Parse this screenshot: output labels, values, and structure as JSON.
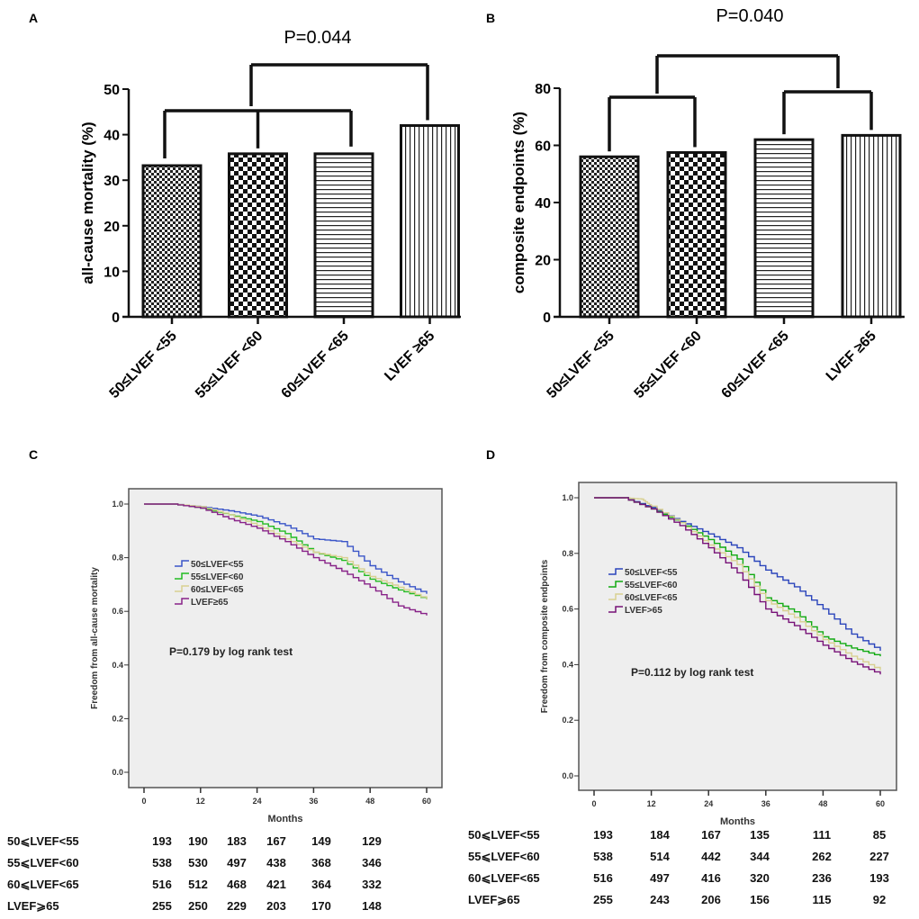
{
  "chart_data": [
    {
      "panel": "A",
      "type": "bar",
      "ylabel": "all-cause mortality (%)",
      "ylim": [
        0,
        50
      ],
      "yticks": [
        0,
        10,
        20,
        30,
        40,
        50
      ],
      "categories": [
        "50≤LVEF <55",
        "55≤LVEF <60",
        "60≤LVEF <65",
        "LVEF ≥65"
      ],
      "values": [
        33.2,
        35.8,
        35.8,
        42.0
      ],
      "patterns": [
        "fine-checker",
        "checker",
        "horizontal-lines",
        "vertical-lines"
      ],
      "annotation": "P=0.044"
    },
    {
      "panel": "B",
      "type": "bar",
      "ylabel": "composite endpoints (%)",
      "ylim": [
        0,
        80
      ],
      "yticks": [
        0,
        20,
        40,
        60,
        80
      ],
      "categories": [
        "50≤LVEF <55",
        "55≤LVEF <60",
        "60≤LVEF <65",
        "LVEF ≥65"
      ],
      "values": [
        56.0,
        57.5,
        62.0,
        63.5
      ],
      "patterns": [
        "fine-checker",
        "checker",
        "horizontal-lines",
        "vertical-lines"
      ],
      "annotation": "P=0.040"
    },
    {
      "panel": "C",
      "type": "line",
      "xlabel": "Months",
      "ylabel": "Freedom from all-cause mortality",
      "xlim": [
        0,
        60
      ],
      "ylim": [
        0,
        1
      ],
      "xticks": [
        "0",
        "12",
        "24",
        "36",
        "48",
        "60"
      ],
      "yticks": [
        "0.0",
        "0.2",
        "0.4",
        "0.6",
        "0.8",
        "1.0"
      ],
      "annotation": "P=0.179 by log rank test",
      "legend_placement": "center-left",
      "background": "#eeeeee",
      "series": [
        {
          "name": "50≤LVEF<55",
          "color": "#3a55c8",
          "x": [
            0,
            6,
            12,
            18,
            24,
            30,
            36,
            42,
            48,
            54,
            60
          ],
          "y": [
            1,
            1,
            0.99,
            0.975,
            0.955,
            0.92,
            0.87,
            0.86,
            0.77,
            0.71,
            0.665
          ]
        },
        {
          "name": "55≤LVEF<60",
          "color": "#22bb22",
          "x": [
            0,
            6,
            12,
            18,
            24,
            30,
            36,
            42,
            48,
            54,
            60
          ],
          "y": [
            1,
            1,
            0.985,
            0.96,
            0.935,
            0.89,
            0.82,
            0.79,
            0.72,
            0.68,
            0.645
          ]
        },
        {
          "name": "60≤LVEF<65",
          "color": "#d8d090",
          "x": [
            0,
            6,
            12,
            18,
            24,
            30,
            36,
            42,
            48,
            54,
            60
          ],
          "y": [
            1,
            1,
            0.99,
            0.96,
            0.92,
            0.87,
            0.82,
            0.8,
            0.73,
            0.69,
            0.645
          ]
        },
        {
          "name": "LVEF≥65",
          "color": "#882288",
          "x": [
            0,
            6,
            12,
            18,
            24,
            30,
            36,
            42,
            48,
            54,
            60
          ],
          "y": [
            1,
            1,
            0.985,
            0.945,
            0.91,
            0.86,
            0.8,
            0.75,
            0.69,
            0.62,
            0.585
          ]
        }
      ],
      "risk_table": {
        "rows": [
          {
            "label": "50⩽LVEF<55",
            "values": [
              "193",
              "190",
              "183",
              "167",
              "149",
              "129"
            ]
          },
          {
            "label": "55⩽LVEF<60",
            "values": [
              "538",
              "530",
              "497",
              "438",
              "368",
              "346"
            ]
          },
          {
            "label": "60⩽LVEF<65",
            "values": [
              "516",
              "512",
              "468",
              "421",
              "364",
              "332"
            ]
          },
          {
            "label": "LVEF⩾65",
            "values": [
              "255",
              "250",
              "229",
              "203",
              "170",
              "148"
            ]
          }
        ]
      }
    },
    {
      "panel": "D",
      "type": "line",
      "xlabel": "Months",
      "ylabel": "Freedom from composite endpoints",
      "xlim": [
        0,
        60
      ],
      "ylim": [
        0,
        1
      ],
      "xticks": [
        "0",
        "12",
        "24",
        "36",
        "48",
        "60"
      ],
      "yticks": [
        "0.0",
        "0.2",
        "0.4",
        "0.6",
        "0.8",
        "1.0"
      ],
      "annotation": "P=0.112 by log rank test",
      "legend_placement": "center-left",
      "background": "#eeeeee",
      "series": [
        {
          "name": "50≤LVEF<55",
          "color": "#2a44bb",
          "x": [
            0,
            6,
            12,
            18,
            24,
            30,
            36,
            42,
            48,
            54,
            60
          ],
          "y": [
            1,
            1,
            0.965,
            0.915,
            0.87,
            0.82,
            0.74,
            0.68,
            0.6,
            0.51,
            0.45
          ]
        },
        {
          "name": "55≤LVEF<60",
          "color": "#11aa11",
          "x": [
            0,
            6,
            12,
            18,
            24,
            30,
            36,
            42,
            48,
            54,
            60
          ],
          "y": [
            1,
            1,
            0.96,
            0.91,
            0.85,
            0.78,
            0.64,
            0.59,
            0.5,
            0.46,
            0.43
          ]
        },
        {
          "name": "60≤LVEF<65",
          "color": "#d8d090",
          "x": [
            0,
            6,
            10,
            12,
            18,
            24,
            30,
            36,
            42,
            48,
            54,
            60
          ],
          "y": [
            1,
            1,
            0.995,
            0.97,
            0.91,
            0.83,
            0.76,
            0.63,
            0.57,
            0.49,
            0.43,
            0.38
          ]
        },
        {
          "name": "LVEF>65",
          "color": "#771177",
          "x": [
            0,
            6,
            12,
            18,
            24,
            30,
            36,
            42,
            48,
            54,
            60
          ],
          "y": [
            1,
            1,
            0.96,
            0.9,
            0.82,
            0.73,
            0.6,
            0.54,
            0.47,
            0.41,
            0.365
          ]
        }
      ],
      "risk_table": {
        "rows": [
          {
            "label": "50⩽LVEF<55",
            "values": [
              "193",
              "184",
              "167",
              "135",
              "111",
              "85"
            ]
          },
          {
            "label": "55⩽LVEF<60",
            "values": [
              "538",
              "514",
              "442",
              "344",
              "262",
              "227"
            ]
          },
          {
            "label": "60⩽LVEF<65",
            "values": [
              "516",
              "497",
              "416",
              "320",
              "236",
              "193"
            ]
          },
          {
            "label": "LVEF⩾65",
            "values": [
              "255",
              "243",
              "206",
              "156",
              "115",
              "92"
            ]
          }
        ]
      }
    }
  ]
}
